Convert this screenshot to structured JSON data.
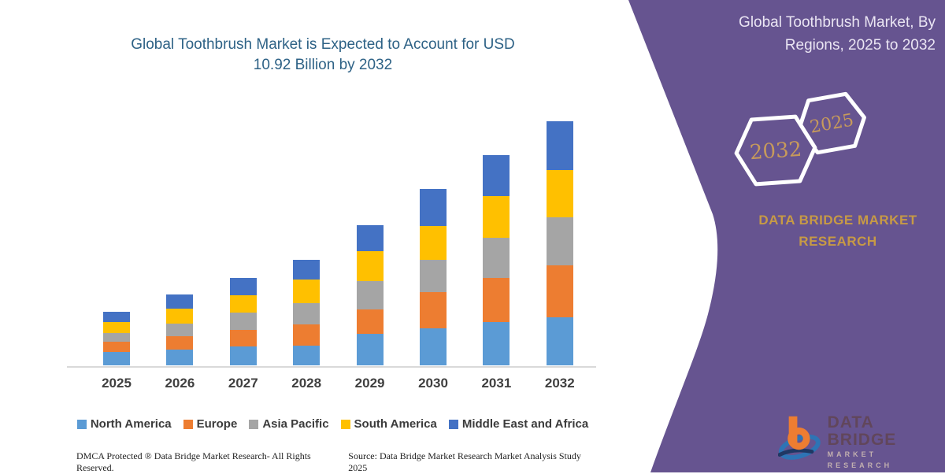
{
  "main_title": {
    "line1": "Global Toothbrush Market is Expected to Account for USD",
    "line2": "10.92 Billion by 2032"
  },
  "panel": {
    "title_line1": "Global Toothbrush Market, By",
    "title_line2": "Regions, 2025 to 2032",
    "hexagon_front_year": "2032",
    "hexagon_back_year": "2025",
    "brand_line1": "DATA BRIDGE MARKET",
    "brand_line2": "RESEARCH",
    "colors": {
      "background": "#665490",
      "gold": "#C79A45",
      "hex_outline": "#FFFFFF"
    }
  },
  "chart_data": {
    "type": "bar",
    "stacked": true,
    "title": "Global Toothbrush Market is Expected to Account for USD 10.92 Billion by 2032",
    "unit": "USD Billion",
    "categories": [
      "2025",
      "2026",
      "2027",
      "2028",
      "2029",
      "2030",
      "2031",
      "2032"
    ],
    "series": [
      {
        "name": "North America",
        "color": "#5B9BD5",
        "values": [
          0.59,
          0.69,
          0.84,
          0.87,
          1.4,
          1.67,
          1.94,
          2.15
        ]
      },
      {
        "name": "Europe",
        "color": "#ED7D31",
        "values": [
          0.47,
          0.62,
          0.73,
          0.97,
          1.09,
          1.6,
          1.96,
          2.31
        ]
      },
      {
        "name": "Asia Pacific",
        "color": "#A5A5A5",
        "values": [
          0.38,
          0.55,
          0.8,
          0.94,
          1.29,
          1.44,
          1.82,
          2.17
        ]
      },
      {
        "name": "South America",
        "color": "#FFC000",
        "values": [
          0.49,
          0.68,
          0.76,
          1.05,
          1.33,
          1.53,
          1.85,
          2.11
        ]
      },
      {
        "name": "Middle East and Africa",
        "color": "#4472C4",
        "values": [
          0.45,
          0.64,
          0.79,
          0.89,
          1.14,
          1.64,
          1.84,
          2.18
        ]
      }
    ],
    "totals": [
      2.38,
      3.18,
      3.92,
      4.72,
      6.25,
      7.88,
      9.41,
      10.92
    ],
    "ylim": [
      0,
      11.5
    ],
    "grid": false,
    "axis_color": "#D9D9D9",
    "legend_position": "bottom"
  },
  "footer": {
    "left": "DMCA Protected ® Data Bridge Market Research-  All Rights Reserved.",
    "right": "Source: Data Bridge Market Research  Market Analysis Study 2025"
  },
  "logo": {
    "text_line1": "DATA BRIDGE",
    "text_line2": "MARKET RESEARCH"
  }
}
